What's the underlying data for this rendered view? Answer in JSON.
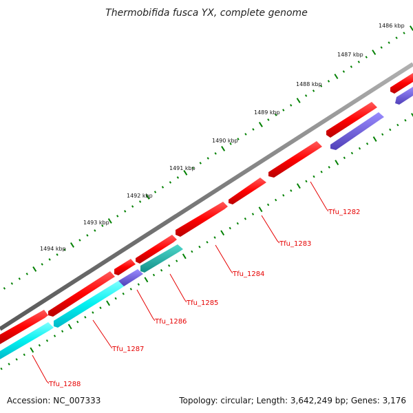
{
  "title": "Thermobifida fusca YX, complete genome",
  "accession_text": "Accession: NC_007333",
  "topology_text": "Topology: circular; Length: 3,642,249 bp; Genes: 3,176",
  "kbp_labels": [
    "1486 kbp",
    "1487 kbp",
    "1488 kbp",
    "1489 kbp",
    "1490 kbp",
    "1491 kbp",
    "1492 kbp",
    "1493 kbp",
    "1494 kbp"
  ],
  "gene_labels": [
    "Tfu_1282",
    "Tfu_1283",
    "Tfu_1284",
    "Tfu_1285",
    "Tfu_1286",
    "Tfu_1287",
    "Tfu_1288"
  ],
  "colors": {
    "backbone": "#808080",
    "gene_red": "#ff0000",
    "gene_cyan": "#00ffff",
    "gene_teal": "#20b2aa",
    "gene_purple": "#7060d0",
    "tick_green": "#008000",
    "label_red": "#e60000"
  }
}
